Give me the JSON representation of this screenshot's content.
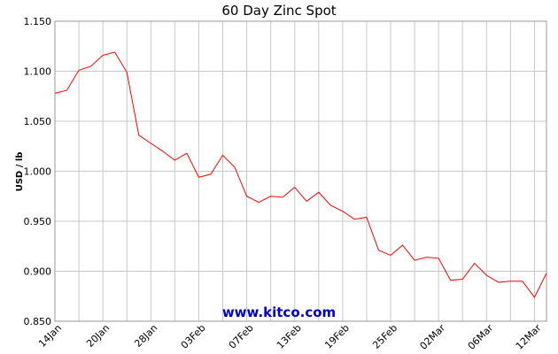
{
  "chart_data": {
    "type": "line",
    "title": "60 Day Zinc Spot",
    "y_label": "USD / lb",
    "watermark": "www.kitco.com",
    "categories": [
      "14Jan",
      null,
      null,
      null,
      "20Jan",
      null,
      null,
      null,
      "28Jan",
      null,
      null,
      null,
      "03Feb",
      null,
      null,
      null,
      "07Feb",
      null,
      null,
      null,
      "13Feb",
      null,
      null,
      null,
      "19Feb",
      null,
      null,
      null,
      "25Feb",
      null,
      null,
      null,
      "02Mar",
      null,
      null,
      null,
      "06Mar",
      null,
      null,
      null,
      "12Mar",
      null
    ],
    "series": [
      {
        "name": "Zinc",
        "color": "#ff0000",
        "values": [
          1.078,
          1.081,
          1.101,
          1.105,
          1.116,
          1.119,
          1.099,
          1.036,
          1.028,
          1.02,
          1.011,
          1.018,
          0.994,
          0.997,
          1.016,
          1.004,
          0.975,
          0.969,
          0.975,
          0.974,
          0.984,
          0.97,
          0.979,
          0.966,
          0.96,
          0.952,
          0.954,
          0.921,
          0.916,
          0.926,
          0.911,
          0.914,
          0.913,
          0.891,
          0.892,
          0.908,
          0.896,
          0.889,
          0.89,
          0.89,
          0.874,
          0.898
        ]
      }
    ],
    "ylim": [
      0.85,
      1.15
    ],
    "yticks": [
      {
        "value": 0.85,
        "label": "0.850"
      },
      {
        "value": 0.9,
        "label": "0.900"
      },
      {
        "value": 0.95,
        "label": "0.950"
      },
      {
        "value": 1,
        "label": "1.000"
      },
      {
        "value": 1.05,
        "label": "1.050"
      },
      {
        "value": 1.1,
        "label": "1.100"
      },
      {
        "value": 1.15,
        "label": "1.150"
      }
    ],
    "grid": true
  }
}
